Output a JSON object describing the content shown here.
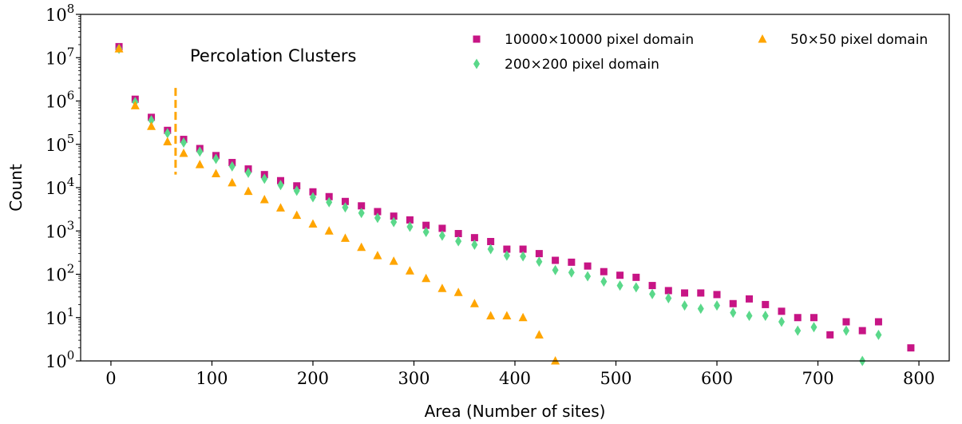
{
  "chart_data": {
    "type": "scatter",
    "annotation": "Percolation Clusters",
    "xlabel": "Area (Number of sites)",
    "ylabel": "Count",
    "xlim": [
      -30,
      830
    ],
    "ylim": [
      1,
      100000000
    ],
    "yscale": "log",
    "x_ticks": [
      0,
      100,
      200,
      300,
      400,
      500,
      600,
      700,
      800
    ],
    "x_tick_labels": [
      "0",
      "100",
      "200",
      "300",
      "400",
      "500",
      "600",
      "700",
      "800"
    ],
    "y_ticks": [
      1,
      10,
      100,
      1000,
      10000,
      100000,
      1000000,
      10000000,
      100000000
    ],
    "y_tick_exponents": [
      "0",
      "1",
      "2",
      "3",
      "4",
      "5",
      "6",
      "7",
      "8"
    ],
    "y_tick_base": "10",
    "grid": false,
    "legend_position": "top-right",
    "vertical_marker": {
      "x": 64,
      "y_range": [
        20000,
        2000000
      ],
      "color": "#ffa500",
      "style": "dashed"
    },
    "series": [
      {
        "name": "10000×10000 pixel domain",
        "marker": "square",
        "color": "#c71585",
        "x": [
          8,
          24,
          40,
          56,
          72,
          88,
          104,
          120,
          136,
          152,
          168,
          184,
          200,
          216,
          232,
          248,
          264,
          280,
          296,
          312,
          328,
          344,
          360,
          376,
          392,
          408,
          424,
          440,
          456,
          472,
          488,
          504,
          520,
          536,
          552,
          568,
          584,
          600,
          616,
          632,
          648,
          664,
          680,
          696,
          712,
          728,
          744,
          760,
          792
        ],
        "y": [
          18000000,
          1100000,
          420000,
          210000,
          130000,
          80000,
          55000,
          38000,
          27000,
          20000,
          14500,
          11000,
          8000,
          6200,
          4800,
          3800,
          2800,
          2200,
          1800,
          1350,
          1150,
          870,
          700,
          570,
          380,
          380,
          300,
          210,
          190,
          155,
          115,
          95,
          85,
          55,
          42,
          37,
          37,
          34,
          21,
          27,
          20,
          14,
          10,
          10,
          4,
          8,
          5,
          8,
          2
        ]
      },
      {
        "name": "200×200 pixel domain",
        "marker": "diamond",
        "color": "#5ad88a",
        "x": [
          8,
          24,
          40,
          56,
          72,
          88,
          104,
          120,
          136,
          152,
          168,
          184,
          200,
          216,
          232,
          248,
          264,
          280,
          296,
          312,
          328,
          344,
          360,
          376,
          392,
          408,
          424,
          440,
          456,
          472,
          488,
          504,
          520,
          536,
          552,
          568,
          584,
          600,
          616,
          632,
          648,
          664,
          680,
          696,
          712,
          728,
          744,
          760
        ],
        "y": [
          16000000,
          950000,
          360000,
          180000,
          110000,
          68000,
          46000,
          31000,
          22000,
          16000,
          11500,
          8500,
          6000,
          4600,
          3500,
          2600,
          2000,
          1600,
          1250,
          950,
          780,
          580,
          480,
          380,
          270,
          260,
          195,
          125,
          110,
          90,
          68,
          55,
          50,
          35,
          28,
          19,
          16,
          19,
          13,
          11,
          11,
          8,
          5,
          6,
          null,
          5,
          1,
          4
        ]
      },
      {
        "name": "50×50 pixel domain",
        "marker": "triangle",
        "color": "#ffa500",
        "x": [
          8,
          24,
          40,
          56,
          72,
          88,
          104,
          120,
          136,
          152,
          168,
          184,
          200,
          216,
          232,
          248,
          264,
          280,
          296,
          312,
          328,
          344,
          360,
          376,
          392,
          408,
          424,
          440
        ],
        "y": [
          16000000,
          780000,
          260000,
          115000,
          62000,
          34000,
          21000,
          13000,
          8200,
          5300,
          3400,
          2300,
          1450,
          1000,
          680,
          420,
          270,
          200,
          120,
          80,
          47,
          38,
          21,
          11,
          11,
          10,
          4,
          1
        ]
      }
    ]
  }
}
